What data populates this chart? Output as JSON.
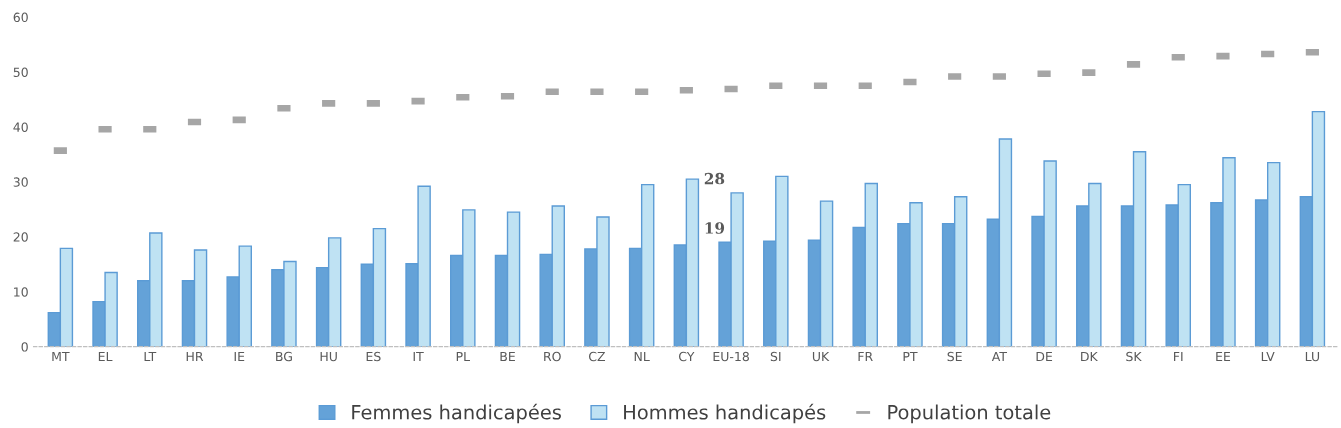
{
  "chart_data": {
    "type": "bar",
    "categories": [
      "MT",
      "EL",
      "LT",
      "HR",
      "IE",
      "BG",
      "HU",
      "ES",
      "IT",
      "PL",
      "BE",
      "RO",
      "CZ",
      "NL",
      "CY",
      "EU-18",
      "SI",
      "UK",
      "FR",
      "PT",
      "SE",
      "AT",
      "DE",
      "DK",
      "SK",
      "FI",
      "EE",
      "LV",
      "LU"
    ],
    "series": [
      {
        "name": "Femmes handicapées",
        "color": "#64a2d8",
        "values": [
          6.2,
          8.2,
          12,
          12,
          12.7,
          14,
          14.4,
          15,
          15.1,
          16.6,
          16.6,
          16.8,
          17.8,
          17.9,
          18.5,
          19,
          19.2,
          19.4,
          21.7,
          22.4,
          22.4,
          23.2,
          23.7,
          25.6,
          25.6,
          25.8,
          26.2,
          26.7,
          27.3
        ]
      },
      {
        "name": "Hommes handicapés",
        "color": "#bfe2f3",
        "values": [
          17.9,
          13.5,
          20.7,
          17.6,
          18.3,
          15.5,
          19.8,
          21.5,
          29.2,
          24.9,
          24.5,
          25.6,
          23.6,
          29.5,
          30.5,
          28,
          31,
          26.5,
          29.7,
          26.2,
          27.3,
          37.8,
          33.8,
          29.7,
          35.5,
          29.5,
          34.4,
          33.5,
          42.8
        ]
      },
      {
        "name": "Population totale",
        "type": "scatter",
        "color": "#a6a6a6",
        "values": [
          35.7,
          39.6,
          39.6,
          40.9,
          41.3,
          43.4,
          44.3,
          44.3,
          44.7,
          45.4,
          45.6,
          46.4,
          46.4,
          46.4,
          46.7,
          46.9,
          47.5,
          47.5,
          47.5,
          48.2,
          49.2,
          49.2,
          49.7,
          49.9,
          51.4,
          52.7,
          52.9,
          53.3,
          53.6
        ]
      }
    ],
    "ylim": [
      0,
      60
    ],
    "yticks": [
      0,
      10,
      20,
      30,
      40,
      50,
      60
    ],
    "annotations": [
      {
        "text": "19",
        "x": "EU-18",
        "y": 19
      },
      {
        "text": "28",
        "x": "EU-18",
        "y": 28
      }
    ],
    "grid": false,
    "legend": "bottom"
  }
}
